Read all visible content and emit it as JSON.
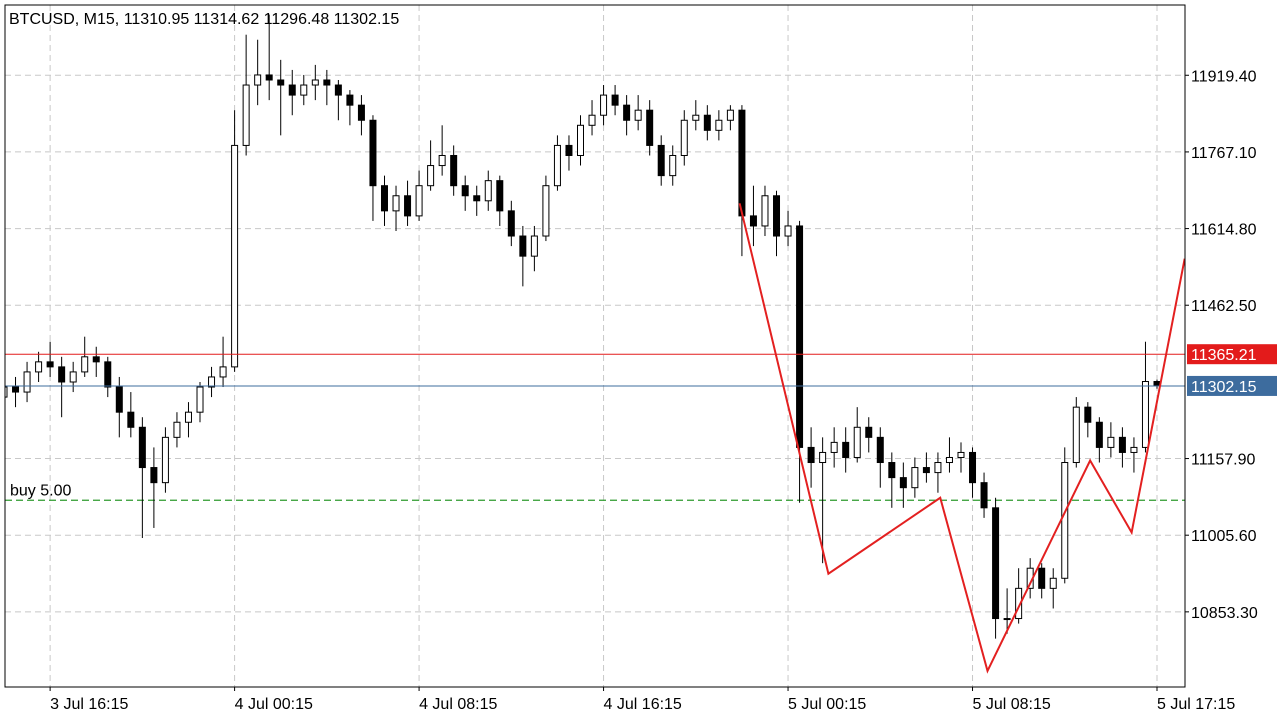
{
  "chart_data": {
    "type": "candlestick",
    "title": "BTCUSD, M15, 11310.95 11314.62 11296.48 11302.15",
    "categories": [
      null,
      null,
      null,
      null,
      "3 Jul 16:15",
      null,
      null,
      null,
      null,
      null,
      null,
      null,
      null,
      null,
      null,
      null,
      null,
      null,
      null,
      null,
      "4 Jul 00:15",
      null,
      null,
      null,
      null,
      null,
      null,
      null,
      null,
      null,
      null,
      null,
      null,
      null,
      null,
      null,
      "4 Jul 08:15",
      null,
      null,
      null,
      null,
      null,
      null,
      null,
      null,
      null,
      null,
      null,
      null,
      null,
      null,
      null,
      "4 Jul 16:15",
      null,
      null,
      null,
      null,
      null,
      null,
      null,
      null,
      null,
      null,
      null,
      null,
      null,
      null,
      null,
      "5 Jul 00:15",
      null,
      null,
      null,
      null,
      null,
      null,
      null,
      null,
      null,
      null,
      null,
      null,
      null,
      null,
      null,
      "5 Jul 08:15",
      null,
      null,
      null,
      null,
      null,
      null,
      null,
      null,
      null,
      null,
      null,
      null,
      null,
      null,
      null,
      "5 Jul 17:15"
    ],
    "open": [
      11280,
      11300,
      11290,
      11330,
      11350,
      11340,
      11310,
      11330,
      11360,
      11350,
      11300,
      11250,
      11220,
      11140,
      11110,
      11200,
      11230,
      11250,
      11300,
      11320,
      11340,
      11780,
      11900,
      11920,
      11910,
      11900,
      11880,
      11900,
      11910,
      11900,
      11880,
      11860,
      11830,
      11700,
      11650,
      11680,
      11640,
      11700,
      11740,
      11760,
      11700,
      11680,
      11670,
      11710,
      11650,
      11600,
      11560,
      11600,
      11700,
      11780,
      11760,
      11820,
      11840,
      11880,
      11860,
      11830,
      11850,
      11780,
      11720,
      11760,
      11830,
      11840,
      11810,
      11830,
      11850,
      11640,
      11620,
      11680,
      11600,
      11620,
      11180,
      11150,
      11170,
      11190,
      11160,
      11220,
      11200,
      11150,
      11120,
      11100,
      11140,
      11130,
      11150,
      11160,
      11170,
      11110,
      11060,
      10840,
      10840,
      10900,
      10940,
      10900,
      10920,
      11150,
      11260,
      11230,
      11180,
      11200,
      11170,
      11180,
      11310.95
    ],
    "high": [
      11320,
      11320,
      11350,
      11370,
      11390,
      11360,
      11350,
      11400,
      11380,
      11360,
      11320,
      11290,
      11240,
      11180,
      11220,
      11250,
      11270,
      11310,
      11340,
      11400,
      11850,
      12000,
      11990,
      12040,
      11950,
      11930,
      11920,
      11940,
      11930,
      11910,
      11890,
      11880,
      11840,
      11720,
      11700,
      11710,
      11730,
      11790,
      11820,
      11780,
      11720,
      11700,
      11730,
      11720,
      11670,
      11620,
      11620,
      11720,
      11800,
      11800,
      11840,
      11870,
      11900,
      11900,
      11880,
      11880,
      11870,
      11800,
      11780,
      11850,
      11870,
      11860,
      11850,
      11860,
      11860,
      11700,
      11700,
      11690,
      11650,
      11630,
      11220,
      11200,
      11220,
      11220,
      11260,
      11240,
      11220,
      11170,
      11150,
      11160,
      11170,
      11170,
      11200,
      11190,
      11180,
      11130,
      11080,
      10900,
      10940,
      10960,
      10950,
      10940,
      11180,
      11280,
      11270,
      11240,
      11230,
      11220,
      11200,
      11390,
      11314.62
    ],
    "low": [
      11250,
      11260,
      11270,
      11310,
      11320,
      11240,
      11290,
      11320,
      11320,
      11280,
      11200,
      11200,
      11000,
      11020,
      11090,
      11180,
      11200,
      11230,
      11280,
      11300,
      11330,
      11760,
      11860,
      11870,
      11800,
      11840,
      11860,
      11870,
      11860,
      11830,
      11820,
      11800,
      11630,
      11620,
      11610,
      11620,
      11630,
      11690,
      11720,
      11680,
      11650,
      11640,
      11650,
      11620,
      11580,
      11500,
      11530,
      11590,
      11690,
      11730,
      11740,
      11800,
      11820,
      11840,
      11800,
      11810,
      11760,
      11700,
      11700,
      11740,
      11810,
      11790,
      11790,
      11810,
      11560,
      11580,
      11600,
      11560,
      11580,
      11070,
      11100,
      10950,
      11140,
      11130,
      11150,
      11170,
      11100,
      11060,
      11060,
      11080,
      11110,
      11090,
      11130,
      11130,
      11080,
      11040,
      10800,
      10810,
      10830,
      10880,
      10880,
      10860,
      10910,
      11140,
      11200,
      11150,
      11160,
      11140,
      11130,
      11170,
      11296.48
    ],
    "close": [
      11300,
      11290,
      11330,
      11350,
      11340,
      11310,
      11330,
      11360,
      11350,
      11300,
      11250,
      11220,
      11140,
      11110,
      11200,
      11230,
      11250,
      11300,
      11320,
      11340,
      11780,
      11900,
      11920,
      11910,
      11900,
      11880,
      11900,
      11910,
      11900,
      11880,
      11860,
      11830,
      11700,
      11650,
      11680,
      11640,
      11700,
      11740,
      11760,
      11700,
      11680,
      11670,
      11710,
      11650,
      11600,
      11560,
      11600,
      11700,
      11780,
      11760,
      11820,
      11840,
      11880,
      11860,
      11830,
      11850,
      11780,
      11720,
      11760,
      11830,
      11840,
      11810,
      11830,
      11850,
      11640,
      11620,
      11680,
      11600,
      11620,
      11180,
      11150,
      11170,
      11190,
      11160,
      11220,
      11200,
      11150,
      11120,
      11100,
      11140,
      11130,
      11150,
      11160,
      11170,
      11110,
      11060,
      10840,
      10840,
      10900,
      10940,
      10900,
      10920,
      11150,
      11260,
      11230,
      11180,
      11200,
      11170,
      11180,
      11310.95,
      11302.15
    ],
    "ylim": [
      10704,
      12059
    ],
    "yticks": [
      {
        "value": 10853.3,
        "label": "10853.30"
      },
      {
        "value": 11005.6,
        "label": "11005.60"
      },
      {
        "value": 11157.9,
        "label": "11157.90"
      },
      {
        "value": 11462.5,
        "label": "11462.50"
      },
      {
        "value": 11614.8,
        "label": "11614.80"
      },
      {
        "value": 11767.1,
        "label": "11767.10"
      },
      {
        "value": 11919.4,
        "label": "11919.40"
      }
    ],
    "grid": true,
    "price_lines": [
      {
        "value": 11365.21,
        "color": "#e31b1b"
      },
      {
        "value": 11302.15,
        "color": "#3d6c9e"
      }
    ],
    "order": {
      "label": "buy 5.00",
      "value": 11075,
      "color": "#2e9b2e"
    },
    "trendline": {
      "x": [
        63.8,
        71.5,
        81.2,
        85.3,
        94.2,
        97.8,
        102.4
      ],
      "y": [
        11665,
        10929,
        11080,
        10736,
        11154,
        11011,
        11555
      ],
      "color": "#e32020"
    }
  }
}
